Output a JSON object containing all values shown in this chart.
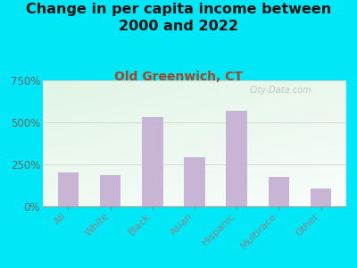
{
  "title": "Change in per capita income between\n2000 and 2022",
  "subtitle": "Old Greenwich, CT",
  "categories": [
    "All",
    "White",
    "Black",
    "Asian",
    "Hispanic",
    "Multirace",
    "Other"
  ],
  "values": [
    200,
    185,
    530,
    295,
    570,
    175,
    105
  ],
  "bar_color": "#c8b4d4",
  "background_outer": "#00e8f8",
  "ylim": [
    0,
    750
  ],
  "yticks": [
    0,
    250,
    500,
    750
  ],
  "title_fontsize": 11.5,
  "subtitle_fontsize": 10,
  "subtitle_color": "#aa4422",
  "watermark": "City-Data.com"
}
